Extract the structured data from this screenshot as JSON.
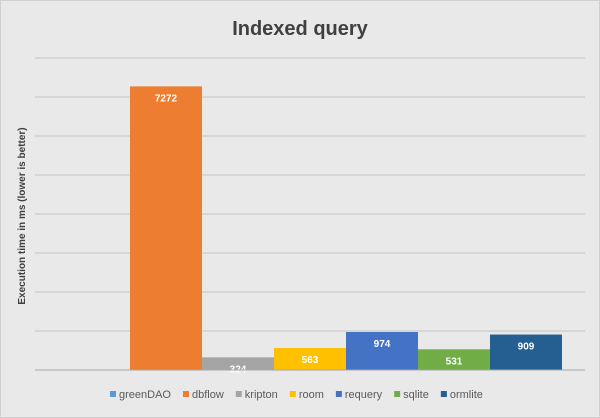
{
  "chart_data": {
    "type": "bar",
    "title": "Indexed query",
    "ylabel": "Execution time in ms (lower is better)",
    "xlabel": "",
    "ylim": [
      0,
      8000
    ],
    "y_grid_step": 1000,
    "grid": true,
    "legend_position": "bottom",
    "series": [
      {
        "name": "greenDAO",
        "value": null,
        "color": "#5b9bd5"
      },
      {
        "name": "dbflow",
        "value": 7272,
        "color": "#ed7d31"
      },
      {
        "name": "kripton",
        "value": 324,
        "color": "#a5a5a5"
      },
      {
        "name": "room",
        "value": 563,
        "color": "#ffc000"
      },
      {
        "name": "requery",
        "value": 974,
        "color": "#4472c4"
      },
      {
        "name": "sqlite",
        "value": 531,
        "color": "#70ad47"
      },
      {
        "name": "ormlite",
        "value": 909,
        "color": "#255e91"
      }
    ],
    "data_labels": [
      "",
      "7272",
      "324",
      "563",
      "974",
      "531",
      "909"
    ]
  }
}
